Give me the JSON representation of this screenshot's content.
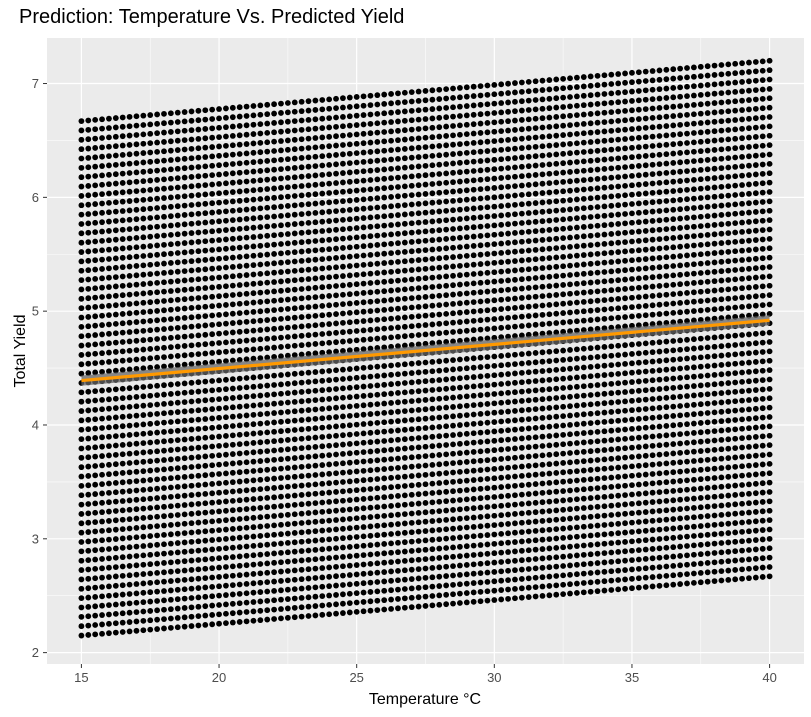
{
  "colors": {
    "panel_background": "#ebebeb",
    "grid_major": "#ffffff",
    "points": "#000000",
    "fit_line": "#ff9900",
    "confidence_band": "#666666"
  },
  "chart_data": {
    "type": "scatter",
    "title": "Prediction: Temperature Vs. Predicted Yield",
    "xlabel": "Temperature °C",
    "ylabel": "Total Yield",
    "xlim": [
      13.75,
      41.25
    ],
    "ylim": [
      1.9,
      7.4
    ],
    "xticks": [
      15,
      20,
      25,
      30,
      35,
      40
    ],
    "xtick_labels": [
      "15",
      "20",
      "25",
      "30",
      "35",
      "40"
    ],
    "yticks": [
      2,
      3,
      4,
      5,
      6,
      7
    ],
    "ytick_labels": [
      "2",
      "3",
      "4",
      "5",
      "6",
      "7"
    ],
    "grid": true,
    "legend": "none",
    "series": [
      {
        "kind": "points",
        "color": "#000000",
        "x_range": [
          15,
          40
        ],
        "lower_bound": {
          "x": [
            15,
            40
          ],
          "y": [
            2.15,
            2.67
          ]
        },
        "upper_bound": {
          "x": [
            15,
            40
          ],
          "y": [
            6.67,
            7.2
          ]
        }
      },
      {
        "kind": "smooth-lm",
        "color": "#ff9900",
        "x": [
          15,
          40
        ],
        "y": [
          4.39,
          4.92
        ]
      }
    ]
  }
}
